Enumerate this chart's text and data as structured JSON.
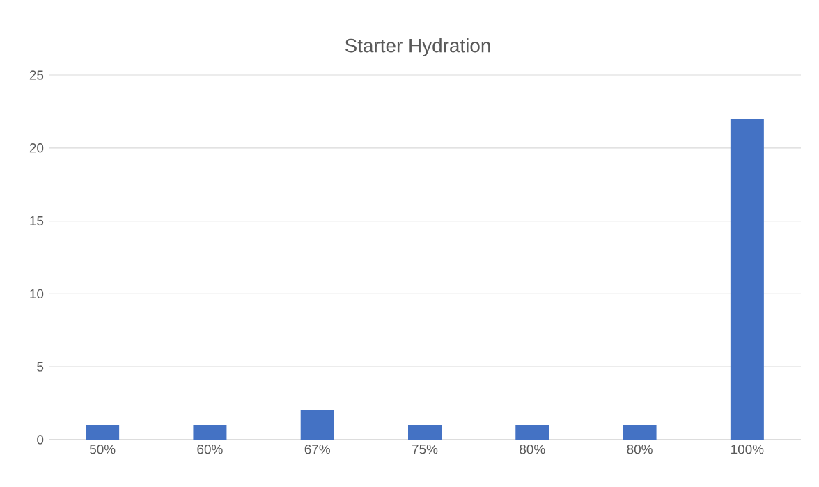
{
  "chart_data": {
    "type": "bar",
    "title": "Starter Hydration",
    "categories": [
      "50%",
      "60%",
      "67%",
      "75%",
      "80%",
      "80%",
      "100%"
    ],
    "values": [
      1,
      1,
      2,
      1,
      1,
      1,
      22
    ],
    "color": "#4472c4",
    "ylim": [
      0,
      25
    ],
    "yticks": [
      0,
      5,
      10,
      15,
      20,
      25
    ],
    "grid": "y"
  }
}
